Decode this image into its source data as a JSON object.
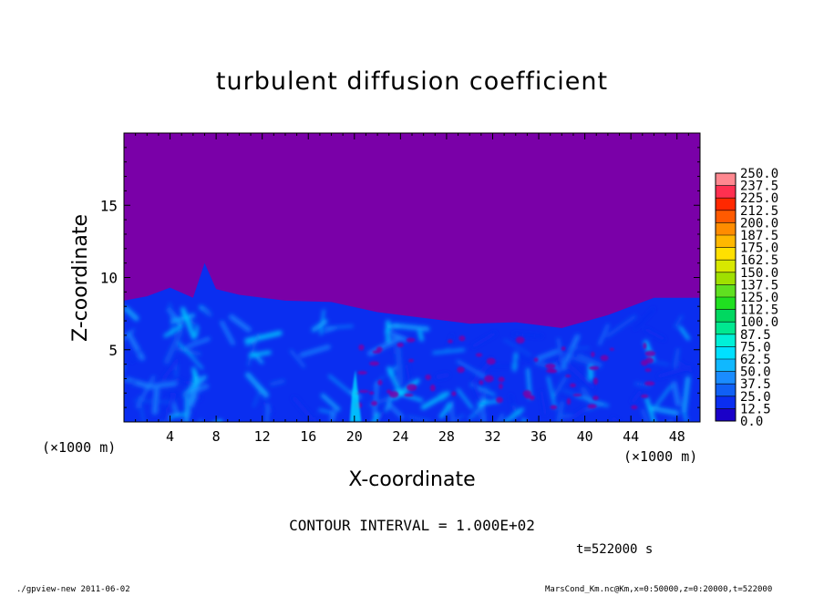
{
  "chart_data": {
    "type": "heatmap",
    "title": "turbulent diffusion coefficient",
    "xlabel": "X-coordinate",
    "ylabel": "Z-coordinate",
    "x_unit": "(×1000 m)",
    "x_unit_right": "(×1000 m)",
    "x_ticks": [
      4,
      8,
      12,
      16,
      20,
      24,
      28,
      32,
      36,
      40,
      44,
      48
    ],
    "y_ticks": [
      5,
      10,
      15
    ],
    "xlim": [
      0,
      50
    ],
    "ylim": [
      0,
      20
    ],
    "colorbar": {
      "levels": [
        "0.0",
        "12.5",
        "25.0",
        "37.5",
        "50.0",
        "62.5",
        "75.0",
        "87.5",
        "100.0",
        "112.5",
        "125.0",
        "137.5",
        "150.0",
        "162.5",
        "175.0",
        "187.5",
        "200.0",
        "212.5",
        "225.0",
        "237.5",
        "250.0"
      ],
      "colors": [
        "#7a00a8",
        "#1a00c8",
        "#0a2ef0",
        "#1060f5",
        "#1a8cff",
        "#10b8ff",
        "#00e0ff",
        "#00f0d8",
        "#00e890",
        "#00d860",
        "#20e020",
        "#60e020",
        "#a0e000",
        "#d8e800",
        "#ffe000",
        "#ffb800",
        "#ff8c00",
        "#ff5a00",
        "#ff2800",
        "#ff3050",
        "#ff8890"
      ]
    },
    "contour_interval": "CONTOUR INTERVAL = 1.000E+02",
    "time": "t=522000 s",
    "background_value_color": "#7a00a8",
    "turbulent_layer_top_km": 8.5
  },
  "footer": {
    "left": "./gpview-new   2011-06-02",
    "right": "MarsCond_Km.nc@Km,x=0:50000,z=0:20000,t=522000"
  }
}
